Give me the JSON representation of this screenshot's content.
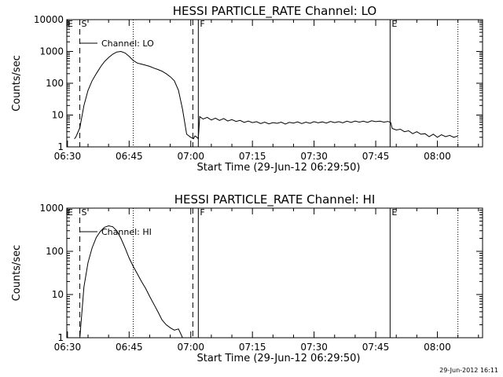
{
  "footer": {
    "timestamp": "29-Jun-2012 16:11"
  },
  "chart_data": [
    {
      "type": "line",
      "title": "HESSI PARTICLE_RATE Channel: LO",
      "xlabel": "Start Time (29-Jun-12 06:29:50)",
      "ylabel": "Counts/sec",
      "yscale": "log",
      "xlim": [
        "06:29:50",
        "08:11:00"
      ],
      "ylim": [
        1,
        10000
      ],
      "xticks": [
        "06:30",
        "06:45",
        "07:00",
        "07:15",
        "07:30",
        "07:45",
        "08:00"
      ],
      "yticks": [
        "1",
        "10",
        "100",
        "1000",
        "10000"
      ],
      "legend": {
        "label": "Channel: LO",
        "placement": "top-left"
      },
      "markers": [
        {
          "label": "S",
          "time": "06:33:00",
          "style": "dashed"
        },
        {
          "label": "",
          "time": "06:46:00",
          "style": "dotted"
        },
        {
          "label": "",
          "time": "07:00:30",
          "style": "dashed"
        },
        {
          "label": "F",
          "time": "07:01:50",
          "style": "solid"
        },
        {
          "label": "E",
          "time": "07:48:30",
          "style": "solid"
        },
        {
          "label": "",
          "time": "08:05:00",
          "style": "dotted"
        }
      ],
      "series": [
        {
          "name": "Channel: LO",
          "x": [
            "06:31:40",
            "06:32:00",
            "06:33:00",
            "06:34:00",
            "06:35:00",
            "06:36:00",
            "06:37:00",
            "06:38:00",
            "06:39:00",
            "06:40:00",
            "06:41:00",
            "06:42:00",
            "06:43:00",
            "06:44:00",
            "06:45:00",
            "06:46:00",
            "06:47:00",
            "06:48:00",
            "06:49:00",
            "06:50:00",
            "06:51:00",
            "06:52:00",
            "06:53:00",
            "06:54:00",
            "06:55:00",
            "06:56:00",
            "06:57:00",
            "06:58:00",
            "06:59:00",
            "07:00:00",
            "07:00:40",
            "07:01:00",
            "07:01:30",
            "07:01:50",
            "07:02:10",
            "07:03:00",
            "07:04:00",
            "07:05:00",
            "07:06:00",
            "07:07:00",
            "07:08:00",
            "07:09:00",
            "07:10:00",
            "07:11:00",
            "07:12:00",
            "07:13:00",
            "07:14:00",
            "07:15:00",
            "07:16:00",
            "07:17:00",
            "07:18:00",
            "07:19:00",
            "07:20:00",
            "07:21:00",
            "07:22:00",
            "07:23:00",
            "07:24:00",
            "07:25:00",
            "07:26:00",
            "07:27:00",
            "07:28:00",
            "07:29:00",
            "07:30:00",
            "07:31:00",
            "07:32:00",
            "07:33:00",
            "07:34:00",
            "07:35:00",
            "07:36:00",
            "07:37:00",
            "07:38:00",
            "07:39:00",
            "07:40:00",
            "07:41:00",
            "07:42:00",
            "07:43:00",
            "07:44:00",
            "07:45:00",
            "07:46:00",
            "07:47:00",
            "07:48:00",
            "07:48:40",
            "07:49:00",
            "07:50:00",
            "07:51:00",
            "07:52:00",
            "07:53:00",
            "07:54:00",
            "07:55:00",
            "07:56:00",
            "07:57:00",
            "07:58:00",
            "07:59:00",
            "08:00:00",
            "08:01:00",
            "08:02:00",
            "08:03:00",
            "08:04:00",
            "08:05:00"
          ],
          "y": [
            1.8,
            2.0,
            4.0,
            20,
            60,
            120,
            200,
            320,
            480,
            640,
            820,
            960,
            1000,
            900,
            700,
            520,
            430,
            400,
            370,
            340,
            300,
            270,
            240,
            200,
            160,
            120,
            60,
            15,
            2.5,
            2.0,
            1.8,
            2.2,
            2.0,
            1.8,
            9.0,
            7.5,
            8.5,
            7.0,
            8.0,
            6.8,
            7.8,
            6.5,
            7.2,
            6.3,
            6.8,
            5.9,
            6.5,
            5.8,
            6.2,
            5.4,
            6.0,
            5.3,
            5.8,
            5.5,
            6.0,
            5.2,
            5.9,
            5.6,
            6.1,
            5.4,
            6.0,
            5.5,
            6.2,
            5.7,
            6.1,
            5.6,
            6.3,
            5.8,
            6.2,
            5.7,
            6.4,
            5.9,
            6.5,
            6.0,
            6.4,
            5.9,
            6.6,
            6.2,
            6.4,
            6.0,
            6.3,
            5.8,
            3.8,
            3.4,
            3.6,
            3.0,
            3.2,
            2.6,
            3.0,
            2.5,
            2.6,
            2.1,
            2.5,
            2.0,
            2.4,
            2.1,
            2.3,
            2.0,
            2.2
          ]
        }
      ]
    },
    {
      "type": "line",
      "title": "HESSI PARTICLE_RATE Channel: HI",
      "xlabel": "Start Time (29-Jun-12 06:29:50)",
      "ylabel": "Counts/sec",
      "yscale": "log",
      "xlim": [
        "06:29:50",
        "08:11:00"
      ],
      "ylim": [
        1,
        1000
      ],
      "xticks": [
        "06:30",
        "06:45",
        "07:00",
        "07:15",
        "07:30",
        "07:45",
        "08:00"
      ],
      "yticks": [
        "1",
        "10",
        "100",
        "1000"
      ],
      "legend": {
        "label": "Channel: HI",
        "placement": "top-left"
      },
      "markers": [
        {
          "label": "S",
          "time": "06:33:00",
          "style": "dashed"
        },
        {
          "label": "",
          "time": "06:46:00",
          "style": "dotted"
        },
        {
          "label": "",
          "time": "07:00:30",
          "style": "dashed"
        },
        {
          "label": "F",
          "time": "07:01:50",
          "style": "solid"
        },
        {
          "label": "E",
          "time": "07:48:30",
          "style": "solid"
        },
        {
          "label": "",
          "time": "08:05:00",
          "style": "dotted"
        }
      ],
      "series": [
        {
          "name": "Channel: HI",
          "x": [
            "06:33:00",
            "06:34:00",
            "06:35:00",
            "06:36:00",
            "06:37:00",
            "06:38:00",
            "06:39:00",
            "06:40:00",
            "06:41:00",
            "06:42:00",
            "06:43:00",
            "06:44:00",
            "06:45:00",
            "06:46:00",
            "06:47:00",
            "06:48:00",
            "06:49:00",
            "06:50:00",
            "06:51:00",
            "06:52:00",
            "06:53:00",
            "06:54:00",
            "06:55:00",
            "06:56:00",
            "06:57:00",
            "06:58:00"
          ],
          "y": [
            1.0,
            15,
            55,
            120,
            210,
            290,
            360,
            390,
            370,
            300,
            200,
            120,
            70,
            45,
            30,
            20,
            14,
            9,
            6,
            4,
            2.6,
            2.0,
            1.7,
            1.5,
            1.6,
            1.0
          ]
        }
      ]
    }
  ]
}
